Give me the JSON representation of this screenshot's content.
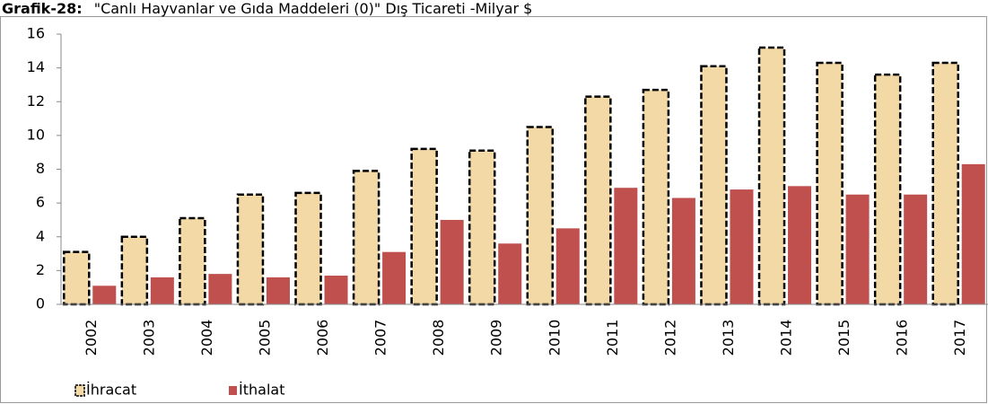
{
  "chart_data": {
    "type": "bar",
    "title_label": "Grafik-28:",
    "title": "\"Canlı Hayvanlar ve Gıda Maddeleri (0)\" Dış Ticareti -Milyar $",
    "categories": [
      "2002",
      "2003",
      "2004",
      "2005",
      "2006",
      "2007",
      "2008",
      "2009",
      "2010",
      "2011",
      "2012",
      "2013",
      "2014",
      "2015",
      "2016",
      "2017"
    ],
    "series": [
      {
        "name": "İhracat",
        "color": "#f3d9a6",
        "values": [
          3.1,
          4.0,
          5.1,
          6.5,
          6.6,
          7.9,
          9.2,
          9.1,
          10.5,
          12.3,
          12.7,
          14.1,
          15.2,
          14.3,
          13.6,
          14.3
        ]
      },
      {
        "name": "İthalat",
        "color": "#c0504d",
        "values": [
          1.1,
          1.6,
          1.8,
          1.6,
          1.7,
          3.1,
          5.0,
          3.6,
          4.5,
          6.9,
          6.3,
          6.8,
          7.0,
          6.5,
          6.5,
          8.3
        ]
      }
    ],
    "ylim": [
      0,
      16
    ],
    "yticks": [
      0,
      2,
      4,
      6,
      8,
      10,
      12,
      14,
      16
    ],
    "legend": "bottom-left"
  }
}
